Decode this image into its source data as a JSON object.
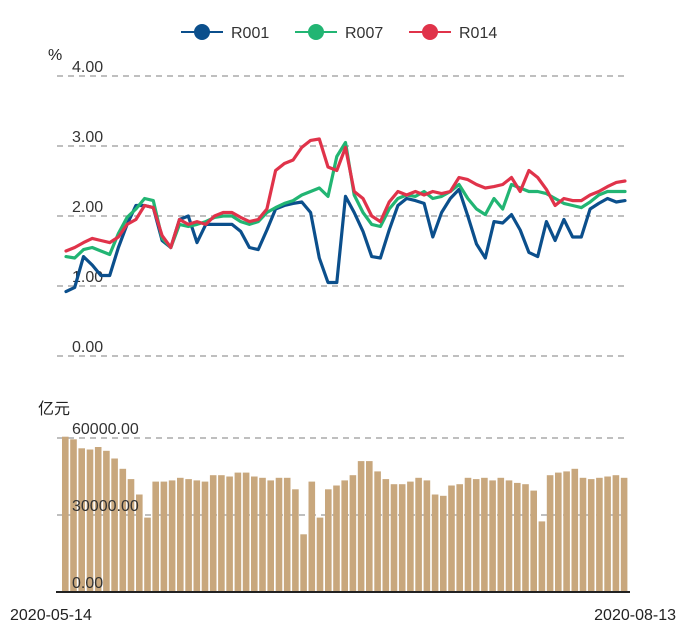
{
  "chart_data": [
    {
      "type": "line",
      "unit_label": "%",
      "ylim": [
        0,
        4
      ],
      "y_ticks": [
        "4.00",
        "3.00",
        "2.00",
        "1.00",
        "0.00"
      ],
      "x_start_label": "2020-05-14",
      "x_end_label": "2020-08-13",
      "series": [
        {
          "name": "R001",
          "color": "#0b4f8c",
          "values": [
            0.92,
            0.98,
            1.42,
            1.3,
            1.15,
            1.15,
            1.55,
            1.88,
            2.15,
            2.15,
            2.12,
            1.65,
            1.55,
            1.95,
            2.0,
            1.62,
            1.88,
            1.88,
            1.88,
            1.88,
            1.78,
            1.55,
            1.52,
            1.8,
            2.1,
            2.15,
            2.18,
            2.2,
            2.05,
            1.4,
            1.05,
            1.05,
            2.28,
            2.05,
            1.78,
            1.42,
            1.4,
            1.8,
            2.15,
            2.25,
            2.22,
            2.18,
            1.7,
            2.05,
            2.25,
            2.38,
            2.0,
            1.6,
            1.4,
            1.92,
            1.9,
            2.02,
            1.8,
            1.48,
            1.42,
            1.92,
            1.65,
            1.95,
            1.7,
            1.7,
            2.1,
            2.18,
            2.25,
            2.2,
            2.22
          ]
        },
        {
          "name": "R007",
          "color": "#22b573",
          "values": [
            1.42,
            1.4,
            1.52,
            1.55,
            1.5,
            1.45,
            1.75,
            1.98,
            2.1,
            2.25,
            2.22,
            1.68,
            1.55,
            1.88,
            1.85,
            1.88,
            1.92,
            1.98,
            2.0,
            2.0,
            1.92,
            1.88,
            1.92,
            2.05,
            2.12,
            2.18,
            2.22,
            2.3,
            2.35,
            2.4,
            2.28,
            2.85,
            3.05,
            2.3,
            2.05,
            1.88,
            1.85,
            2.1,
            2.25,
            2.3,
            2.28,
            2.35,
            2.25,
            2.28,
            2.35,
            2.45,
            2.25,
            2.1,
            2.02,
            2.25,
            2.1,
            2.45,
            2.4,
            2.35,
            2.35,
            2.32,
            2.25,
            2.18,
            2.15,
            2.12,
            2.2,
            2.3,
            2.35,
            2.35,
            2.35
          ]
        },
        {
          "name": "R014",
          "color": "#e0334a",
          "values": [
            1.5,
            1.55,
            1.62,
            1.68,
            1.65,
            1.62,
            1.7,
            1.88,
            1.95,
            2.15,
            2.12,
            1.72,
            1.55,
            1.95,
            1.88,
            1.92,
            1.88,
            2.0,
            2.05,
            2.05,
            1.98,
            1.92,
            1.95,
            2.1,
            2.65,
            2.75,
            2.8,
            2.98,
            3.08,
            3.1,
            2.7,
            2.65,
            2.98,
            2.35,
            2.25,
            2.0,
            1.92,
            2.2,
            2.35,
            2.3,
            2.35,
            2.3,
            2.35,
            2.32,
            2.35,
            2.55,
            2.52,
            2.45,
            2.4,
            2.42,
            2.45,
            2.55,
            2.35,
            2.65,
            2.55,
            2.38,
            2.15,
            2.25,
            2.22,
            2.22,
            2.3,
            2.35,
            2.42,
            2.48,
            2.5
          ]
        }
      ]
    },
    {
      "type": "bar",
      "unit_label": "亿元",
      "ylim": [
        0,
        60000
      ],
      "y_ticks": [
        "60000.00",
        "30000.00",
        "0.00"
      ],
      "color": "#c8a77d",
      "values": [
        60500,
        59500,
        56000,
        55500,
        56500,
        55000,
        52000,
        48000,
        44000,
        38000,
        29000,
        43000,
        43000,
        43500,
        44500,
        44000,
        43500,
        43000,
        45500,
        45500,
        45000,
        46500,
        46500,
        45000,
        44500,
        43500,
        44500,
        44500,
        40000,
        22500,
        43000,
        29000,
        40000,
        41500,
        43500,
        45500,
        51000,
        51000,
        47000,
        44000,
        42000,
        42000,
        43000,
        44500,
        43500,
        38000,
        37500,
        41500,
        42000,
        44500,
        44000,
        44500,
        43500,
        44500,
        43500,
        42500,
        42000,
        39500,
        27500,
        45500,
        46500,
        47000,
        48000,
        44500,
        44000,
        44500,
        45000,
        45500,
        44500
      ]
    }
  ]
}
